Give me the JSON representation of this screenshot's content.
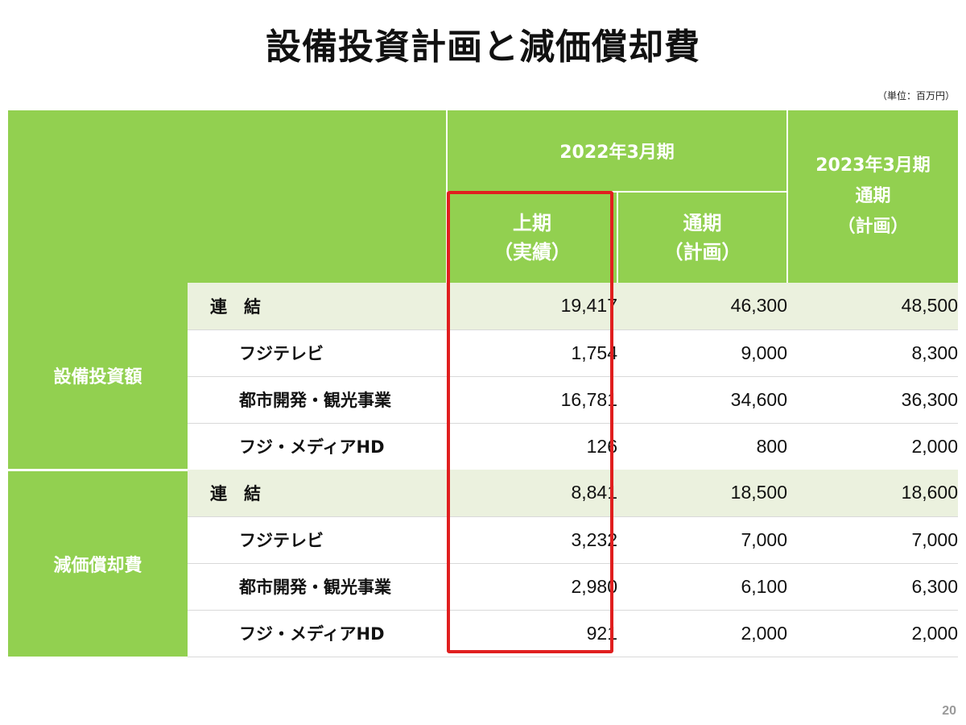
{
  "title": "設備投資計画と減価償却費",
  "unit": "（単位：百万円）",
  "page_number": "20",
  "header": {
    "fy2022": "2022年3月期",
    "fy2022_h1_line1": "上期",
    "fy2022_h1_line2": "（実績）",
    "fy2022_full_line1": "通期",
    "fy2022_full_line2": "（計画）",
    "fy2023_line1": "2023年3月期",
    "fy2023_line2": "通期",
    "fy2023_line3": "（計画）"
  },
  "sections": [
    {
      "label": "設備投資額",
      "rows": [
        {
          "name": "連　結",
          "h1_actual": "19,417",
          "full_plan_2022": "46,300",
          "full_plan_2023": "48,500"
        },
        {
          "name": "フジテレビ",
          "h1_actual": "1,754",
          "full_plan_2022": "9,000",
          "full_plan_2023": "8,300"
        },
        {
          "name": "都市開発・観光事業",
          "h1_actual": "16,781",
          "full_plan_2022": "34,600",
          "full_plan_2023": "36,300"
        },
        {
          "name": "フジ・メディアHD",
          "h1_actual": "126",
          "full_plan_2022": "800",
          "full_plan_2023": "2,000"
        }
      ]
    },
    {
      "label": "減価償却費",
      "rows": [
        {
          "name": "連　結",
          "h1_actual": "8,841",
          "full_plan_2022": "18,500",
          "full_plan_2023": "18,600"
        },
        {
          "name": "フジテレビ",
          "h1_actual": "3,232",
          "full_plan_2022": "7,000",
          "full_plan_2023": "7,000"
        },
        {
          "name": "都市開発・観光事業",
          "h1_actual": "2,980",
          "full_plan_2022": "6,100",
          "full_plan_2023": "6,300"
        },
        {
          "name": "フジ・メディアHD",
          "h1_actual": "921",
          "full_plan_2022": "2,000",
          "full_plan_2023": "2,000"
        }
      ]
    }
  ],
  "colors": {
    "header_green": "#92d050",
    "total_row_bg": "#ebf1de",
    "highlight_red": "#e01f1f"
  }
}
